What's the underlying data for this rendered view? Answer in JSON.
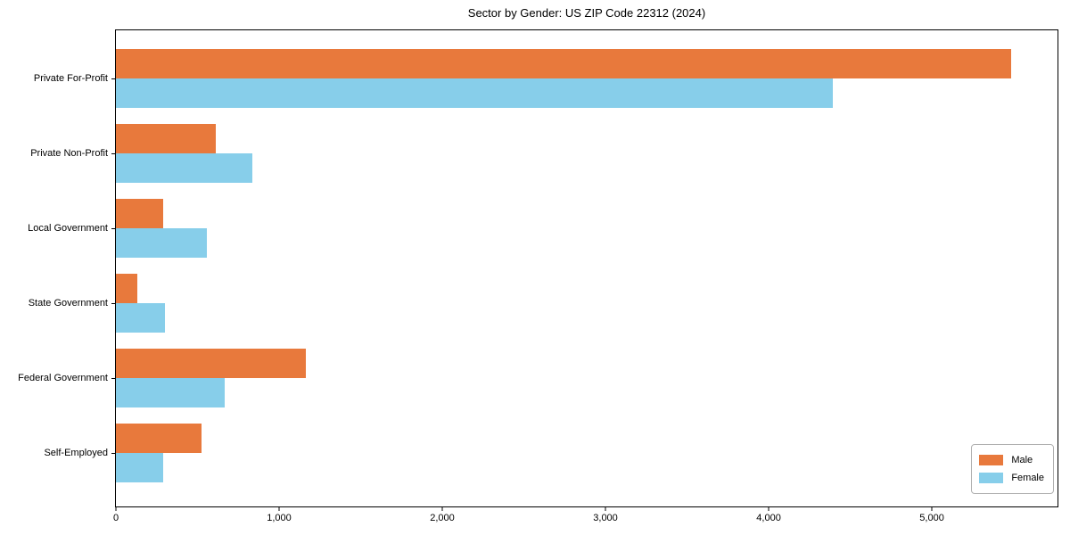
{
  "chart_data": {
    "type": "bar",
    "orientation": "horizontal",
    "title": "Sector by Gender: US ZIP Code 22312 (2024)",
    "categories": [
      "Private For-Profit",
      "Private Non-Profit",
      "Local Government",
      "State Government",
      "Federal Government",
      "Self-Employed"
    ],
    "series": [
      {
        "name": "Male",
        "color": "#e8793c",
        "values": [
          5485,
          610,
          290,
          130,
          1165,
          525
        ]
      },
      {
        "name": "Female",
        "color": "#87ceea",
        "values": [
          4395,
          835,
          555,
          300,
          665,
          290
        ]
      }
    ],
    "xlabel": "",
    "ylabel": "",
    "xlim": [
      0,
      5770
    ],
    "xticks": [
      0,
      1000,
      2000,
      3000,
      4000,
      5000
    ],
    "xtick_labels": [
      "0",
      "1,000",
      "2,000",
      "3,000",
      "4,000",
      "5,000"
    ],
    "grid": false,
    "legend_position": "lower right",
    "legend_labels": [
      "Male",
      "Female"
    ]
  }
}
